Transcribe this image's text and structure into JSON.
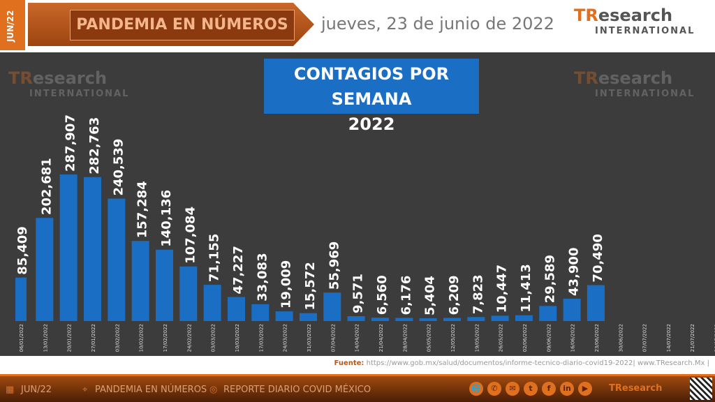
{
  "header": {
    "side_label": "JUN/22",
    "banner": "PANDEMIA EN NÚMEROS",
    "date": "jueves, 23 de junio de 2022",
    "logo_tr": "TR",
    "logo_rest": "esearch",
    "logo_intl": "INTERNATIONAL"
  },
  "source": {
    "label": "Fuente:",
    "text": "https://www.gob.mx/salud/documentos/informe-tecnico-diario-covid19-2022| www.TResearch.Mx |"
  },
  "footer": {
    "date": "JUN/22",
    "section": "PANDEMIA EN NÚMEROS",
    "report": "REPORTE DIARIO COVID MÉXICO",
    "icons": [
      "globe-icon",
      "whatsapp-icon",
      "mail-icon",
      "twitter-icon",
      "facebook-icon",
      "linkedin-icon",
      "youtube-icon"
    ]
  },
  "chart_data": {
    "type": "bar",
    "title": "CONTAGIOS POR SEMANA",
    "subtitle": "2022",
    "bar_color": "#1a6fc4",
    "categories": [
      "06/01/2022",
      "13/01/2022",
      "20/01/2022",
      "27/01/2022",
      "03/02/2022",
      "10/02/2022",
      "17/02/2022",
      "24/02/2022",
      "03/03/2022",
      "10/03/2022",
      "17/03/2022",
      "24/03/2022",
      "31/03/2022",
      "07/04/2022",
      "14/04/2022",
      "21/04/2022",
      "28/04/2022",
      "05/05/2022",
      "12/05/2022",
      "19/05/2022",
      "26/05/2022",
      "02/06/2022",
      "09/06/2022",
      "16/06/2022",
      "23/06/2022",
      "30/06/2022",
      "07/07/2022",
      "14/07/2022",
      "21/07/2022",
      "28/07/2022"
    ],
    "values": [
      85409,
      202681,
      287907,
      282763,
      240539,
      157284,
      140136,
      107084,
      71155,
      47227,
      33083,
      19009,
      15572,
      55969,
      9571,
      6560,
      6176,
      5404,
      6209,
      7823,
      10447,
      11413,
      29589,
      43900,
      70490,
      null,
      null,
      null,
      null,
      null
    ],
    "labels": [
      "85,409",
      "202,681",
      "287,907",
      "282,763",
      "240,539",
      "157,284",
      "140,136",
      "107,084",
      "71,155",
      "47,227",
      "33,083",
      "19,009",
      "15,572",
      "55,969",
      "9,571",
      "6,560",
      "6,176",
      "5,404",
      "6,209",
      "7,823",
      "10,447",
      "11,413",
      "29,589",
      "43,900",
      "70,490"
    ]
  }
}
